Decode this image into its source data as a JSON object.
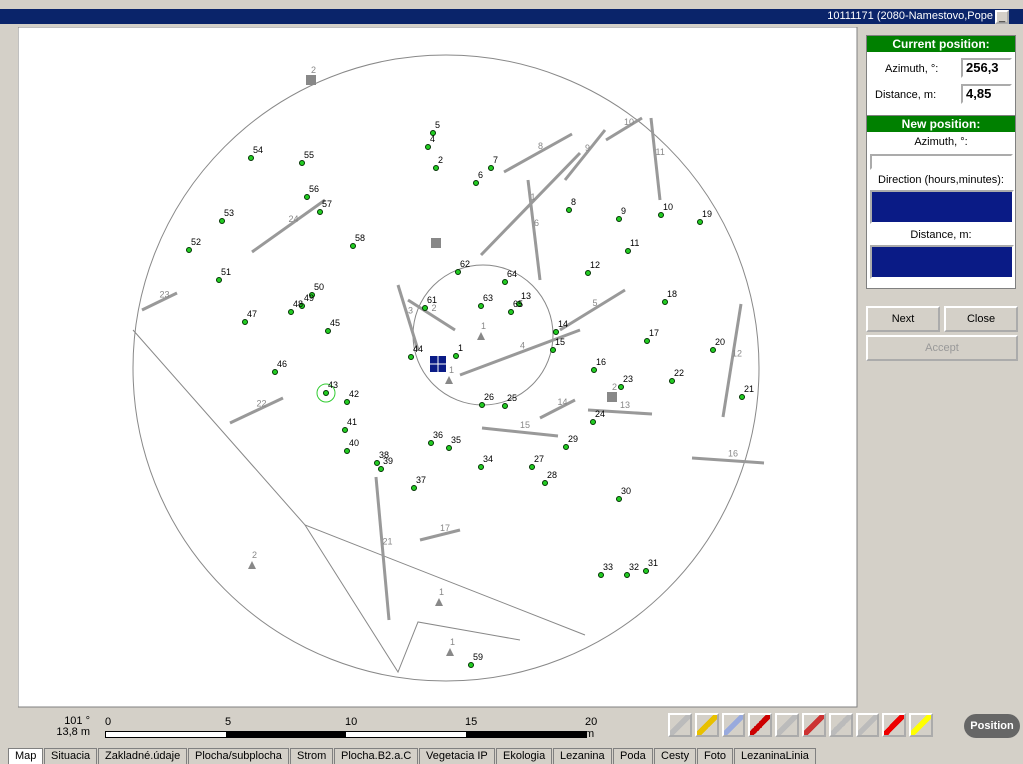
{
  "window": {
    "title": "10111171 (2080-Namestovo,Pope"
  },
  "current_position": {
    "header": "Current position:",
    "azimuth_label": "Azimuth, °:",
    "azimuth": "256,3",
    "distance_label": "Distance, m:",
    "distance": "4,85"
  },
  "new_position": {
    "header": "New position:",
    "azimuth_label": "Azimuth, °:",
    "direction_label": "Direction (hours,minutes):",
    "distance_label": "Distance, m:"
  },
  "buttons": {
    "next": "Next",
    "close": "Close",
    "accept": "Accept",
    "position": "Position"
  },
  "status": {
    "angle": "101 °",
    "distance": "13,8 m"
  },
  "scale": [
    "0",
    "5",
    "10",
    "15",
    "20 m"
  ],
  "trees": [
    "5",
    "4",
    "54",
    "55",
    "2",
    "7",
    "6",
    "56",
    "57",
    "53",
    "8",
    "9",
    "10",
    "19",
    "52",
    "58",
    "11",
    "62",
    "64",
    "12",
    "51",
    "50",
    "49",
    "48",
    "47",
    "63",
    "13",
    "65",
    "18",
    "45",
    "61",
    "14",
    "17",
    "15",
    "20",
    "44",
    "1",
    "46",
    "16",
    "22",
    "23",
    "43",
    "42",
    "21",
    "26",
    "25",
    "24",
    "41",
    "36",
    "35",
    "29",
    "40",
    "38",
    "39",
    "34",
    "27",
    "28",
    "37",
    "30",
    "33",
    "32",
    "31",
    "59"
  ],
  "logs": [
    "23",
    "24",
    "22",
    "21",
    "1",
    "8",
    "9",
    "10",
    "11",
    "6",
    "3",
    "2",
    "4",
    "5",
    "14",
    "15",
    "13",
    "12",
    "16",
    "17"
  ],
  "markers": [
    "2",
    "2",
    "1",
    "1",
    "2",
    "1",
    "1"
  ],
  "tabs": [
    "Map",
    "Situacia",
    "Zakladné.údaje",
    "Plocha/subplocha",
    "Strom",
    "Plocha.B2.a.C",
    "Vegetacia IP",
    "Ekologia",
    "Lezanina",
    "Poda",
    "Cesty",
    "Foto",
    "LezaninaLinia"
  ]
}
